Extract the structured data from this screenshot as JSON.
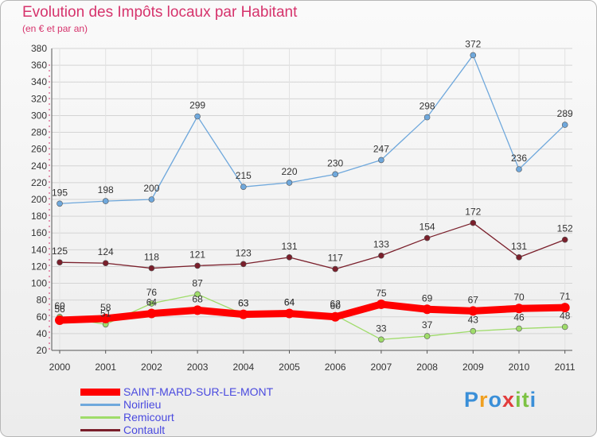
{
  "title": "Evolution des Impôts locaux par Habitant",
  "subtitle": "(en € et par an)",
  "logo_text": "Proxiti",
  "chart_data": {
    "type": "line",
    "title": "Evolution des Impôts locaux par Habitant",
    "subtitle": "(en € et par an)",
    "x": [
      "2000",
      "2001",
      "2002",
      "2003",
      "2004",
      "2005",
      "2006",
      "2007",
      "2008",
      "2009",
      "2010",
      "2011"
    ],
    "ylim": [
      20,
      380
    ],
    "yticks": [
      "20",
      "40",
      "60",
      "80",
      "100",
      "120",
      "140",
      "160",
      "180",
      "200",
      "220",
      "240",
      "260",
      "280",
      "300",
      "320",
      "340",
      "360",
      "380"
    ],
    "grid": true,
    "legend_position": "bottom-left",
    "series": [
      {
        "name": "SAINT-MARD-SUR-LE-MONT",
        "color": "#ff0000",
        "values": [
          56,
          58,
          64,
          68,
          63,
          64,
          60,
          75,
          69,
          67,
          70,
          71
        ],
        "show_labels": false
      },
      {
        "name": "Noirlieu",
        "color": "#6fa8dc",
        "values": [
          195,
          198,
          200,
          299,
          215,
          220,
          230,
          247,
          298,
          372,
          236,
          289
        ],
        "show_labels": true
      },
      {
        "name": "Remicourt",
        "color": "#9fdc6a",
        "values": [
          60,
          51,
          76,
          87,
          63,
          64,
          62,
          33,
          37,
          43,
          46,
          48
        ],
        "show_labels": true
      },
      {
        "name": "Contault",
        "color": "#7a1f2b",
        "values": [
          125,
          124,
          118,
          121,
          123,
          131,
          117,
          133,
          154,
          172,
          131,
          152
        ],
        "show_labels": true
      }
    ],
    "value_labels": [
      [
        "56",
        "58",
        "64",
        "68",
        "63",
        "64",
        "60",
        "75",
        "69",
        "67",
        "70",
        "71"
      ],
      [
        "195",
        "198",
        "200",
        "299",
        "215",
        "220",
        "230",
        "247",
        "298",
        "372",
        "236",
        "289"
      ],
      [
        "60",
        "51",
        "76",
        "87",
        "63",
        "64",
        "62",
        "33",
        "37",
        "43",
        "46",
        "48"
      ],
      [
        "125",
        "124",
        "118",
        "121",
        "123",
        "131",
        "117",
        "133",
        "154",
        "172",
        "131",
        "152"
      ]
    ]
  }
}
